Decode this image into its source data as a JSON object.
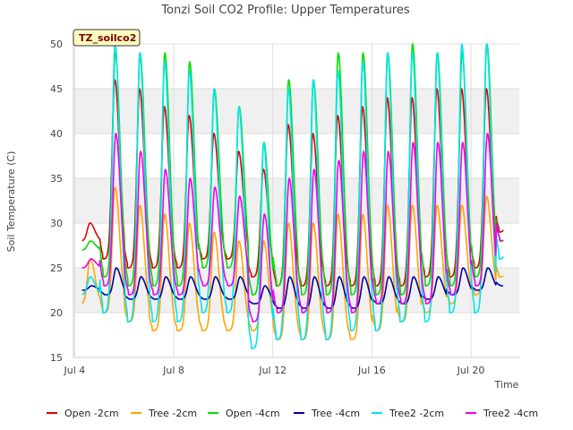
{
  "chart_data": {
    "type": "line",
    "title": "Tonzi Soil CO2 Profile: Upper Temperatures",
    "xlabel": "Time",
    "ylabel": "Soil Temperature (C)",
    "badge": "TZ_soilco2",
    "xlim": [
      3.95,
      21.95
    ],
    "ylim": [
      15,
      50
    ],
    "xticks": [
      4,
      8,
      12,
      16,
      20
    ],
    "xtick_labels": [
      "Jul 4",
      "Jul 8",
      "Jul 12",
      "Jul 16",
      "Jul 20"
    ],
    "yticks": [
      15,
      20,
      25,
      30,
      35,
      40,
      45,
      50
    ],
    "grid": true,
    "legend_position": "bottom",
    "x_units": "day of July",
    "days": [
      4,
      5,
      6,
      7,
      8,
      9,
      10,
      11,
      12,
      13,
      14,
      15,
      16,
      17,
      18,
      19,
      20,
      21
    ],
    "series": [
      {
        "name": "Open -2cm",
        "color": "#e00000",
        "max": [
          30,
          46,
          45,
          43,
          42,
          40,
          38,
          36,
          41,
          40,
          42,
          43,
          44,
          44,
          45,
          45,
          45,
          45
        ],
        "min": [
          28,
          26,
          25,
          25,
          25,
          26,
          26,
          24,
          23,
          23,
          23,
          23,
          23,
          23,
          24,
          24,
          25,
          29
        ]
      },
      {
        "name": "Tree -2cm",
        "color": "#ffa500",
        "max": [
          26,
          34,
          32,
          31,
          30,
          29,
          28,
          28,
          30,
          30,
          31,
          31,
          32,
          32,
          32,
          32,
          33,
          34
        ],
        "min": [
          21,
          20,
          19,
          18,
          18,
          18,
          18,
          18,
          17,
          17,
          17,
          17,
          18,
          19,
          20,
          21,
          22,
          24
        ]
      },
      {
        "name": "Open -4cm",
        "color": "#00dd00",
        "max": [
          28,
          49,
          49,
          49,
          48,
          45,
          43,
          39,
          46,
          46,
          49,
          49,
          49,
          50,
          49,
          49,
          50,
          45
        ],
        "min": [
          27,
          24,
          23,
          23,
          23,
          25,
          25,
          22,
          23,
          22,
          22,
          22,
          22,
          22,
          23,
          23,
          24,
          28
        ]
      },
      {
        "name": "Tree -4cm",
        "color": "#0000aa",
        "max": [
          23,
          25,
          24,
          24,
          24,
          24,
          24,
          23,
          24,
          24,
          24,
          24,
          24,
          24,
          24,
          25,
          25,
          25
        ],
        "min": [
          22.5,
          22,
          21.5,
          21.5,
          21.5,
          21.5,
          21.5,
          21,
          20.5,
          20.5,
          20.5,
          20.5,
          21,
          21,
          21.5,
          22,
          22.5,
          23
        ]
      },
      {
        "name": "Tree2 -2cm",
        "color": "#00e5ee",
        "max": [
          24,
          50,
          49,
          48,
          47,
          45,
          43,
          39,
          45,
          46,
          47,
          48,
          49,
          49,
          49,
          50,
          50,
          50
        ],
        "min": [
          22,
          20,
          19,
          19,
          19,
          20,
          20,
          16,
          17,
          17,
          17,
          18,
          18,
          19,
          19,
          20,
          20,
          26
        ]
      },
      {
        "name": "Tree2 -4cm",
        "color": "#ee00ee",
        "max": [
          26,
          40,
          38,
          36,
          35,
          34,
          33,
          31,
          35,
          36,
          37,
          38,
          38,
          39,
          39,
          39,
          40,
          40
        ],
        "min": [
          25,
          23,
          22,
          22,
          22,
          23,
          23,
          19,
          20,
          20,
          20,
          20,
          21,
          21,
          21,
          22,
          23,
          28
        ]
      }
    ]
  }
}
